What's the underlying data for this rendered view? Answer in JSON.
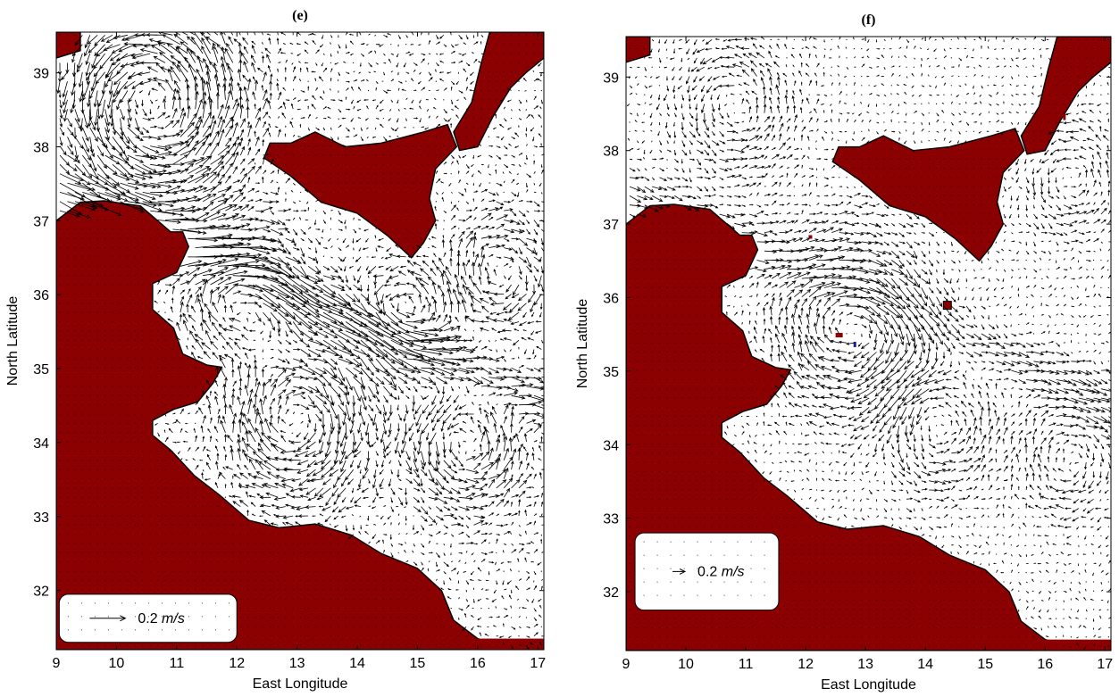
{
  "figure": {
    "colors": {
      "land": "#8b0000",
      "land_edge": "#000000",
      "arrow": "#000000",
      "lake_blue": "#1a1aa8"
    },
    "icon": "current-vector-arrow",
    "panels": [
      {
        "id": "e",
        "title": "(e)",
        "xlabel": "East Longitude",
        "ylabel": "North Latitude",
        "xticks": [
          9,
          10,
          11,
          12,
          13,
          14,
          15,
          16,
          17
        ],
        "yticks": [
          32,
          33,
          34,
          35,
          36,
          37,
          38,
          39
        ],
        "xlim": [
          9,
          17.1
        ],
        "ylim": [
          31.2,
          39.55
        ],
        "legend": {
          "label": "0.2 m/s",
          "value": "0.2",
          "unit": "m/s",
          "reference_speed_ms": 0.2
        }
      },
      {
        "id": "f",
        "title": "(f)",
        "xlabel": "East Longitude",
        "ylabel": "North Latitude",
        "xticks": [
          9,
          10,
          11,
          12,
          13,
          14,
          15,
          16,
          17
        ],
        "yticks": [
          32,
          33,
          34,
          35,
          36,
          37,
          38,
          39
        ],
        "xlim": [
          9,
          17.1
        ],
        "ylim": [
          31.2,
          39.55
        ],
        "legend": {
          "label": "0.2 m/s",
          "value": "0.2",
          "unit": "m/s",
          "reference_speed_ms": 0.2
        }
      }
    ]
  }
}
